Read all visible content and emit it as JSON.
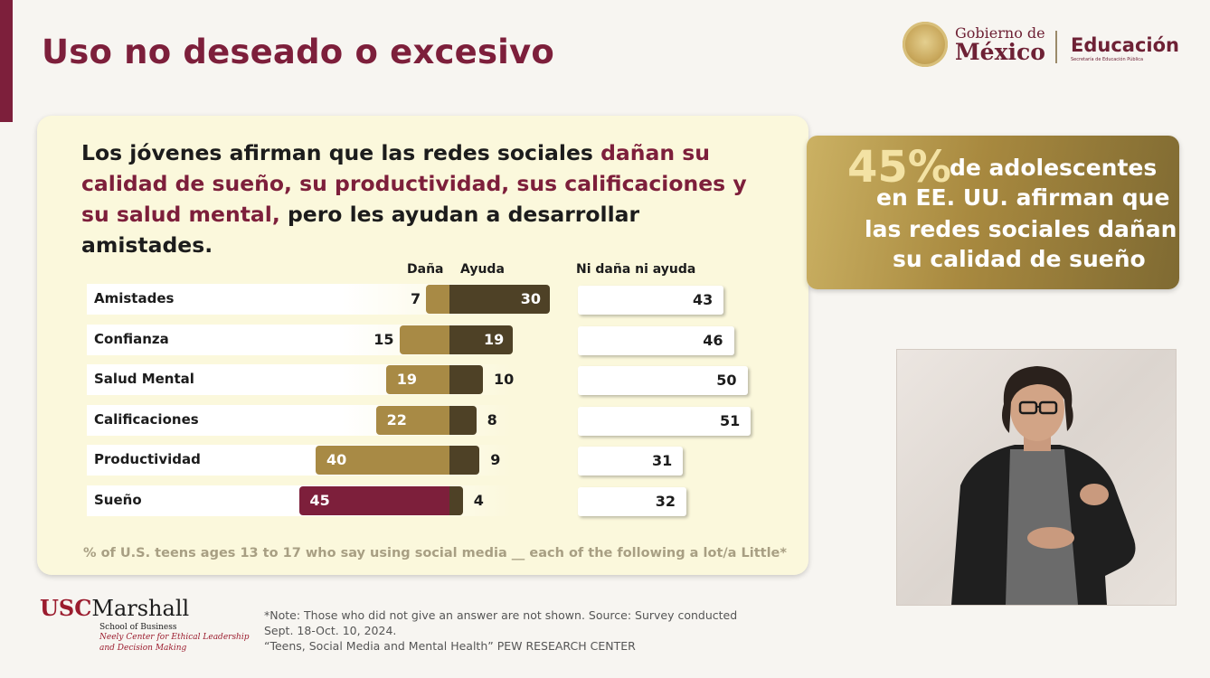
{
  "slide": {
    "title": "Uso no deseado o excesivo"
  },
  "header": {
    "gobierno_line1": "Gobierno de",
    "gobierno_line2": "México",
    "educacion": "Educación",
    "educacion_sub": "Secretaría de Educación Pública"
  },
  "headline": {
    "part1": "Los jóvenes afirman que las redes sociales ",
    "highlight": "dañan su calidad de sueño, su productividad, sus calificaciones y su salud mental,",
    "part2": " pero les ayudan a desarrollar amistades."
  },
  "chart_data": {
    "type": "bar",
    "columns": [
      "Daña",
      "Ayuda",
      "Ni daña ni ayuda"
    ],
    "categories": [
      "Amistades",
      "Confianza",
      "Salud Mental",
      "Calificaciones",
      "Productividad",
      "Sueño"
    ],
    "series": [
      {
        "name": "Daña",
        "values": [
          7,
          15,
          19,
          22,
          40,
          45
        ]
      },
      {
        "name": "Ayuda",
        "values": [
          30,
          19,
          10,
          8,
          9,
          4
        ]
      },
      {
        "name": "Ni daña ni ayuda",
        "values": [
          43,
          46,
          50,
          51,
          31,
          32
        ]
      }
    ],
    "footnote": "% of U.S. teens ages 13 to 17 who say using social media __ each of the following a lot/a Little*"
  },
  "stat": {
    "pct": "45%",
    "line1": "de adolescentes",
    "line2": "en EE. UU. afirman que",
    "line3": "las redes sociales dañan",
    "line4": "su calidad de sueño"
  },
  "usc": {
    "usc": "USC",
    "marshall": "Marshall",
    "school": "School of Business",
    "center1": "Neely Center for Ethical Leadership",
    "center2": "and Decision Making"
  },
  "note": {
    "line1": "*Note: Those who did not give an answer are not shown. Source: Survey conducted",
    "line2": "Sept. 18-Oct. 10, 2024.",
    "line3": "“Teens, Social Media and Mental Health” PEW RESEARCH CENTER"
  }
}
